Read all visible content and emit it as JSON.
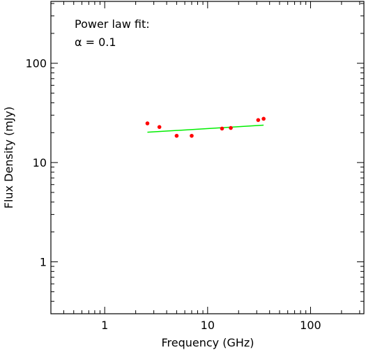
{
  "chart_data": {
    "type": "scatter",
    "xlabel": "Frequency (GHz)",
    "ylabel": "Flux Density (mJy)",
    "x_scale": "log",
    "y_scale": "log",
    "xlim": [
      0.3,
      330
    ],
    "ylim": [
      0.3,
      420
    ],
    "x_major_ticks": [
      1,
      10,
      100
    ],
    "x_tick_labels": [
      "1",
      "10",
      "100"
    ],
    "y_major_ticks": [
      1,
      10,
      100
    ],
    "y_tick_labels": [
      "1",
      "10",
      "100"
    ],
    "grid": false,
    "annotations": [
      "Power law fit:",
      "α  =  0.1"
    ],
    "points": {
      "color": "#ff0000",
      "x": [
        2.6,
        3.4,
        5.0,
        7.0,
        13.8,
        16.8,
        31.0,
        35.0
      ],
      "y": [
        24.8,
        22.8,
        18.6,
        18.6,
        22.0,
        22.3,
        26.8,
        27.6
      ]
    },
    "fit_line": {
      "color": "#00ee00",
      "x": [
        2.6,
        35.0
      ],
      "y": [
        20.2,
        23.8
      ]
    }
  }
}
